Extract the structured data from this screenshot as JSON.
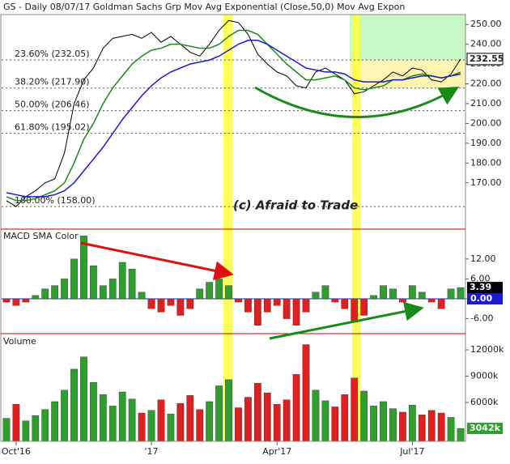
{
  "chart_data": [
    {
      "type": "line",
      "title": "GS - Daily  08/07/17  Goldman Sachs Grp  Mov Avg Exponential (Close,50,0)  Mov Avg Expon",
      "annotation": "(c) Afraid to Trade",
      "categories": [
        null,
        "Oct'16",
        null,
        null,
        null,
        null,
        null,
        null,
        null,
        null,
        null,
        null,
        null,
        null,
        null,
        "'17",
        null,
        null,
        null,
        null,
        null,
        null,
        null,
        null,
        null,
        null,
        null,
        null,
        "Apr'17",
        null,
        null,
        null,
        null,
        null,
        null,
        null,
        null,
        null,
        null,
        null,
        null,
        null,
        "Jul'17",
        null,
        null,
        null,
        null,
        null
      ],
      "series": [
        {
          "color": "#000000",
          "values": [
            161,
            158,
            163,
            166,
            170,
            172,
            185,
            210,
            222,
            228,
            238,
            243,
            244,
            245,
            243,
            246,
            241,
            244,
            240,
            236,
            234,
            240,
            247,
            252,
            251,
            245,
            235,
            230,
            226,
            224,
            219,
            218,
            226,
            228,
            225,
            222,
            215,
            216,
            219,
            222,
            226,
            224,
            228,
            227,
            222,
            221,
            225,
            232.55
          ]
        },
        {
          "color": "#1a8a1a",
          "values": [
            163,
            161,
            161,
            162,
            164,
            166,
            170,
            180,
            192,
            200,
            210,
            218,
            224,
            230,
            234,
            237,
            238,
            240,
            240,
            239,
            238,
            238,
            240,
            244,
            247,
            247,
            245,
            240,
            235,
            230,
            226,
            222,
            222,
            223,
            224,
            222,
            218,
            217,
            218,
            219,
            222,
            222,
            224,
            225,
            224,
            223,
            224,
            226
          ]
        },
        {
          "color": "#1a1ad0",
          "values": [
            165,
            164,
            163,
            163,
            163,
            164,
            166,
            170,
            176,
            182,
            188,
            195,
            202,
            208,
            214,
            219,
            223,
            226,
            228,
            230,
            231,
            232,
            234,
            237,
            240,
            242,
            242,
            240,
            237,
            234,
            231,
            228,
            227,
            226,
            226,
            225,
            222,
            221,
            221,
            221,
            222,
            222,
            223,
            224,
            224,
            223,
            224,
            225
          ]
        }
      ],
      "ylim": [
        147,
        255
      ],
      "yticks": [
        {
          "value": 170,
          "label": "170.00"
        },
        {
          "value": 180,
          "label": "180.00"
        },
        {
          "value": 190,
          "label": "190.00"
        },
        {
          "value": 200,
          "label": "200.00"
        },
        {
          "value": 210,
          "label": "210.00"
        },
        {
          "value": 220,
          "label": "220.00"
        },
        {
          "value": 230,
          "label": "230.00"
        },
        {
          "value": 240,
          "label": "240.00"
        },
        {
          "value": 250,
          "label": "250.00"
        }
      ],
      "fib_levels": [
        {
          "value": 232.05,
          "label": "23.60% (232.05)"
        },
        {
          "value": 217.9,
          "label": "38.20% (217.90)"
        },
        {
          "value": 206.46,
          "label": "50.00% (206.46)"
        },
        {
          "value": 195.02,
          "label": "61.80% (195.02)"
        },
        {
          "value": 158.0,
          "label": "100.00% (158.00)"
        }
      ]
    },
    {
      "type": "bar",
      "title": "MACD SMA Color",
      "values": [
        -1,
        -2,
        -1,
        1,
        3,
        4,
        6,
        12,
        19,
        10,
        4,
        6,
        11,
        9,
        2,
        -3,
        -4,
        -2,
        -5,
        -3,
        3,
        5,
        6,
        4,
        -1,
        -4,
        -8,
        -4,
        -2,
        -6,
        -8,
        -4,
        2,
        4,
        -1,
        -3,
        -7,
        -5,
        1,
        4,
        3,
        -1,
        4,
        2,
        -1,
        -3,
        3,
        3.39
      ],
      "up_color": "#2e9e2e",
      "down_color": "#e02020",
      "ylim": [
        -10.5,
        21
      ],
      "yticks": [
        {
          "value": 12,
          "label": "12.00"
        },
        {
          "value": 6,
          "label": "6.00"
        },
        {
          "value": 0,
          "label": "0.00"
        },
        {
          "value": -6,
          "label": "-6.00"
        }
      ]
    },
    {
      "type": "bar",
      "title": "Volume",
      "values": [
        4200,
        5800,
        3900,
        4500,
        5200,
        6100,
        7400,
        9800,
        11200,
        8300,
        6900,
        5600,
        7200,
        6400,
        4800,
        5100,
        6300,
        4700,
        5900,
        6800,
        5200,
        6100,
        7900,
        8600,
        5400,
        6600,
        8200,
        7100,
        5800,
        6300,
        9200,
        12600,
        7400,
        6200,
        5500,
        6900,
        8800,
        7300,
        5600,
        6100,
        5300,
        4900,
        5700,
        4600,
        5100,
        4800,
        4300,
        3042
      ],
      "value_labels": [
        null,
        null,
        null,
        null,
        null,
        null,
        null,
        null,
        null,
        null,
        null,
        null,
        null,
        null,
        null,
        null,
        null,
        null,
        null,
        null,
        null,
        null,
        null,
        null,
        null,
        null,
        null,
        null,
        null,
        null,
        null,
        null,
        null,
        null,
        null,
        null,
        null,
        null,
        null,
        null,
        null,
        null,
        null,
        null,
        null,
        null,
        null,
        "3042k"
      ],
      "up_color": "#2e9e2e",
      "down_color": "#e02020",
      "ylim": [
        1570,
        13760
      ],
      "yticks": [
        {
          "value": 12000,
          "label": "12000k"
        },
        {
          "value": 9000,
          "label": "9000k"
        },
        {
          "value": 6000,
          "label": "6000k"
        }
      ]
    }
  ]
}
